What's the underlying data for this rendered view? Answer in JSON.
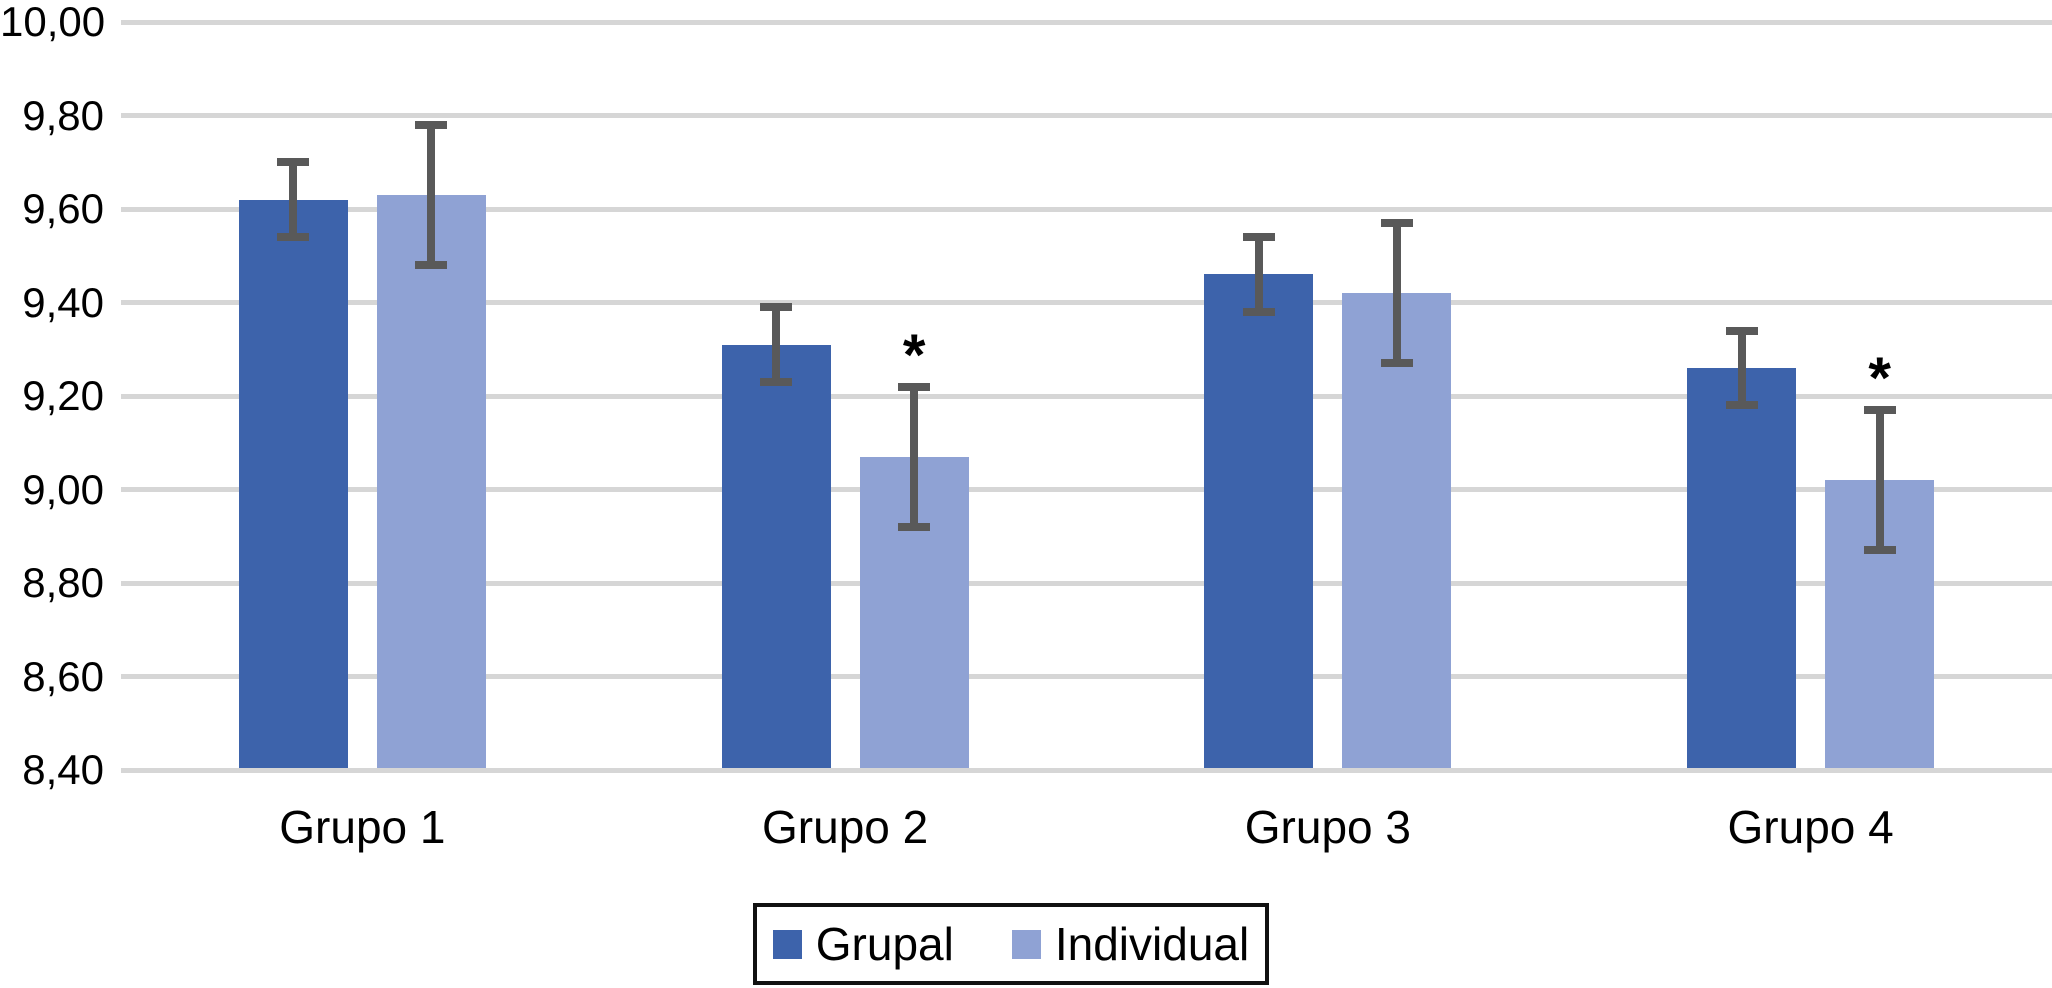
{
  "chart_data": {
    "type": "bar",
    "title": "",
    "xlabel": "",
    "ylabel": "",
    "categories": [
      "Grupo 1",
      "Grupo 2",
      "Grupo 3",
      "Grupo 4"
    ],
    "series": [
      {
        "name": "Grupal",
        "color": "#3D63AB",
        "values": [
          9.62,
          9.31,
          9.46,
          9.26
        ],
        "errors": [
          0.08,
          0.08,
          0.08,
          0.08
        ],
        "significant": [
          false,
          false,
          false,
          false
        ]
      },
      {
        "name": "Individual",
        "color": "#8FA2D4",
        "values": [
          9.63,
          9.07,
          9.42,
          9.02
        ],
        "errors": [
          0.15,
          0.15,
          0.15,
          0.15
        ],
        "significant": [
          false,
          true,
          false,
          true
        ]
      }
    ],
    "ylim": [
      8.4,
      10.0
    ],
    "ytick_step": 0.2,
    "ytick_labels": [
      "8,40",
      "8,60",
      "8,80",
      "9,00",
      "9,20",
      "9,40",
      "9,60",
      "9,80",
      "10,00"
    ],
    "decimal_separator": ",",
    "grid": true,
    "gridline_color": "#D6D6D6",
    "error_bar_color": "#595959",
    "significance_marker": "*",
    "legend_position": "bottom",
    "legend_entries": [
      "Grupal",
      "Individual"
    ]
  }
}
